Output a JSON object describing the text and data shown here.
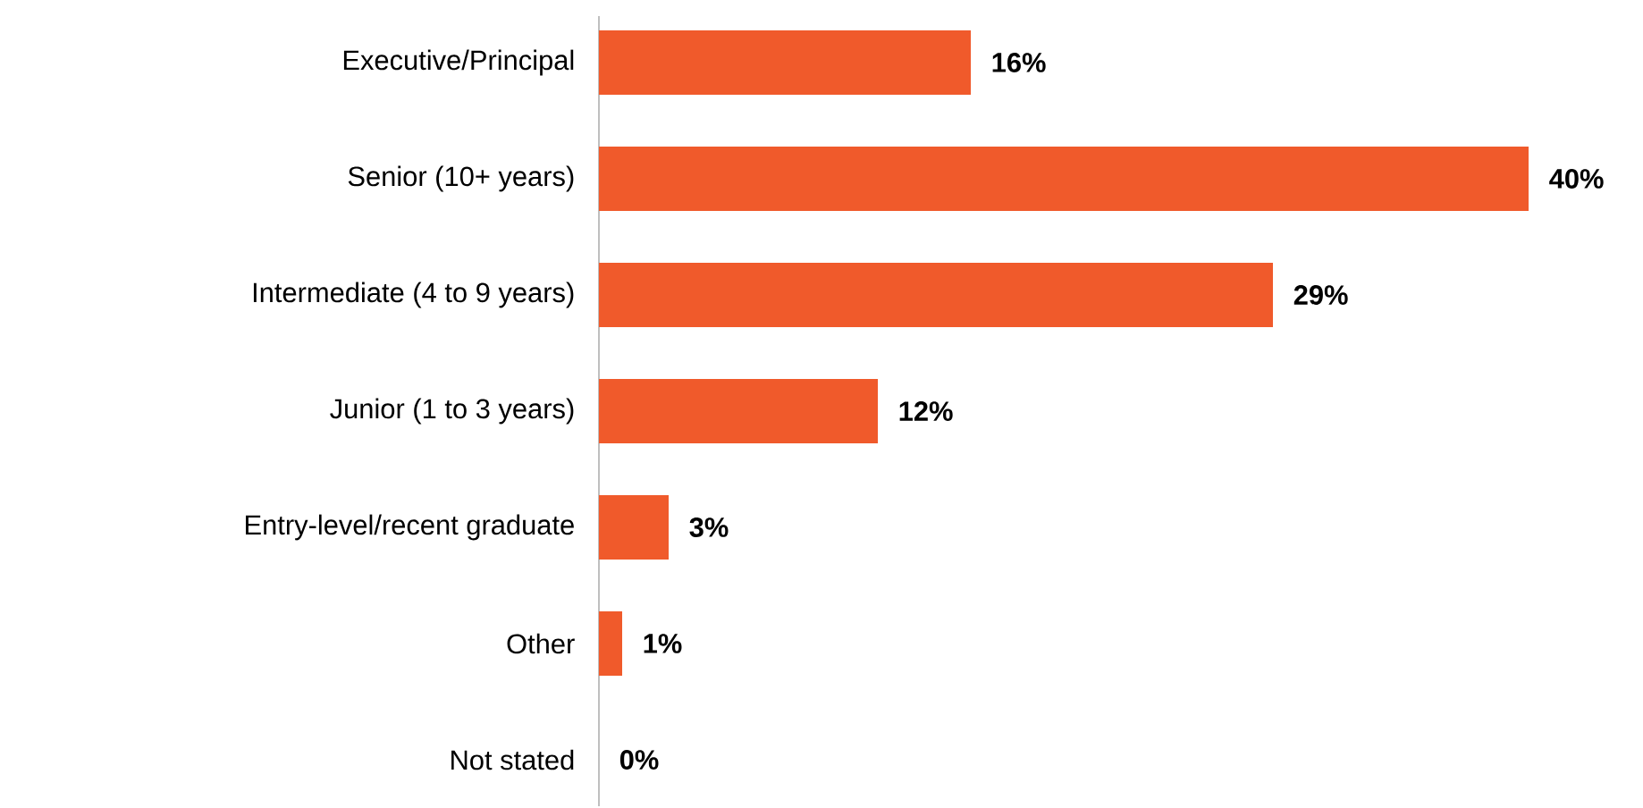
{
  "chart_data": {
    "type": "bar",
    "orientation": "horizontal",
    "categories": [
      "Executive/Principal",
      "Senior (10+ years)",
      "Intermediate (4 to 9 years)",
      "Junior (1 to 3 years)",
      "Entry-level/recent graduate",
      "Other",
      "Not stated"
    ],
    "values": [
      16,
      40,
      29,
      12,
      3,
      1,
      0
    ],
    "value_labels": [
      "16%",
      "40%",
      "29%",
      "12%",
      "3%",
      "1%",
      "0%"
    ],
    "color": "#f05a2b"
  }
}
